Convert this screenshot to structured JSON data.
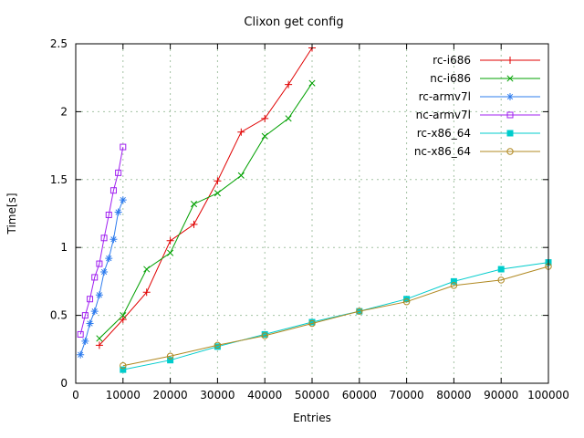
{
  "window": {
    "title": "Clixon get config"
  },
  "chart_data": {
    "type": "line",
    "title": "Clixon get config",
    "xlabel": "Entries",
    "ylabel": "Time[s]",
    "xlim": [
      0,
      100000
    ],
    "ylim": [
      0,
      2.5
    ],
    "grid": true,
    "legend_position": "top-right-inside",
    "xtick_values": [
      0,
      10000,
      20000,
      30000,
      40000,
      50000,
      60000,
      70000,
      80000,
      90000,
      100000
    ],
    "xtick_labels": [
      "0",
      "10000",
      "20000",
      "30000",
      "40000",
      "50000",
      "60000",
      "70000",
      "80000",
      "90000",
      "100000"
    ],
    "ytick_values": [
      0,
      0.5,
      1,
      1.5,
      2,
      2.5
    ],
    "ytick_labels": [
      "0",
      "0.5",
      "1",
      "1.5",
      "2",
      "2.5"
    ],
    "series": [
      {
        "name": "rc-i686",
        "color": "#e00000",
        "marker": "plus",
        "x": [
          5000,
          10000,
          15000,
          20000,
          25000,
          30000,
          35000,
          40000,
          45000,
          50000
        ],
        "y": [
          0.28,
          0.47,
          0.67,
          1.05,
          1.17,
          1.49,
          1.85,
          1.95,
          2.2,
          2.47
        ]
      },
      {
        "name": "nc-i686",
        "color": "#00a000",
        "marker": "cross",
        "x": [
          5000,
          10000,
          15000,
          20000,
          25000,
          30000,
          35000,
          40000,
          45000,
          50000
        ],
        "y": [
          0.33,
          0.5,
          0.84,
          0.96,
          1.32,
          1.4,
          1.53,
          1.82,
          1.95,
          2.21
        ]
      },
      {
        "name": "rc-armv7l",
        "color": "#2e7cee",
        "marker": "asterisk",
        "x": [
          1000,
          2000,
          3000,
          4000,
          5000,
          6000,
          7000,
          8000,
          9000,
          10000
        ],
        "y": [
          0.21,
          0.31,
          0.44,
          0.53,
          0.65,
          0.82,
          0.92,
          1.06,
          1.26,
          1.35
        ]
      },
      {
        "name": "nc-armv7l",
        "color": "#a020f0",
        "marker": "square-open",
        "x": [
          1000,
          2000,
          3000,
          4000,
          5000,
          6000,
          7000,
          8000,
          9000,
          10000
        ],
        "y": [
          0.36,
          0.5,
          0.62,
          0.78,
          0.88,
          1.07,
          1.24,
          1.42,
          1.55,
          1.74
        ]
      },
      {
        "name": "rc-x86_64",
        "color": "#00cccc",
        "marker": "square-filled",
        "x": [
          10000,
          20000,
          30000,
          40000,
          50000,
          60000,
          70000,
          80000,
          90000,
          100000
        ],
        "y": [
          0.1,
          0.17,
          0.27,
          0.36,
          0.45,
          0.53,
          0.62,
          0.75,
          0.84,
          0.89
        ]
      },
      {
        "name": "nc-x86_64",
        "color": "#b08820",
        "marker": "circle-open",
        "x": [
          10000,
          20000,
          30000,
          40000,
          50000,
          60000,
          70000,
          80000,
          90000,
          100000
        ],
        "y": [
          0.13,
          0.2,
          0.28,
          0.35,
          0.44,
          0.53,
          0.6,
          0.72,
          0.76,
          0.86
        ]
      }
    ]
  }
}
